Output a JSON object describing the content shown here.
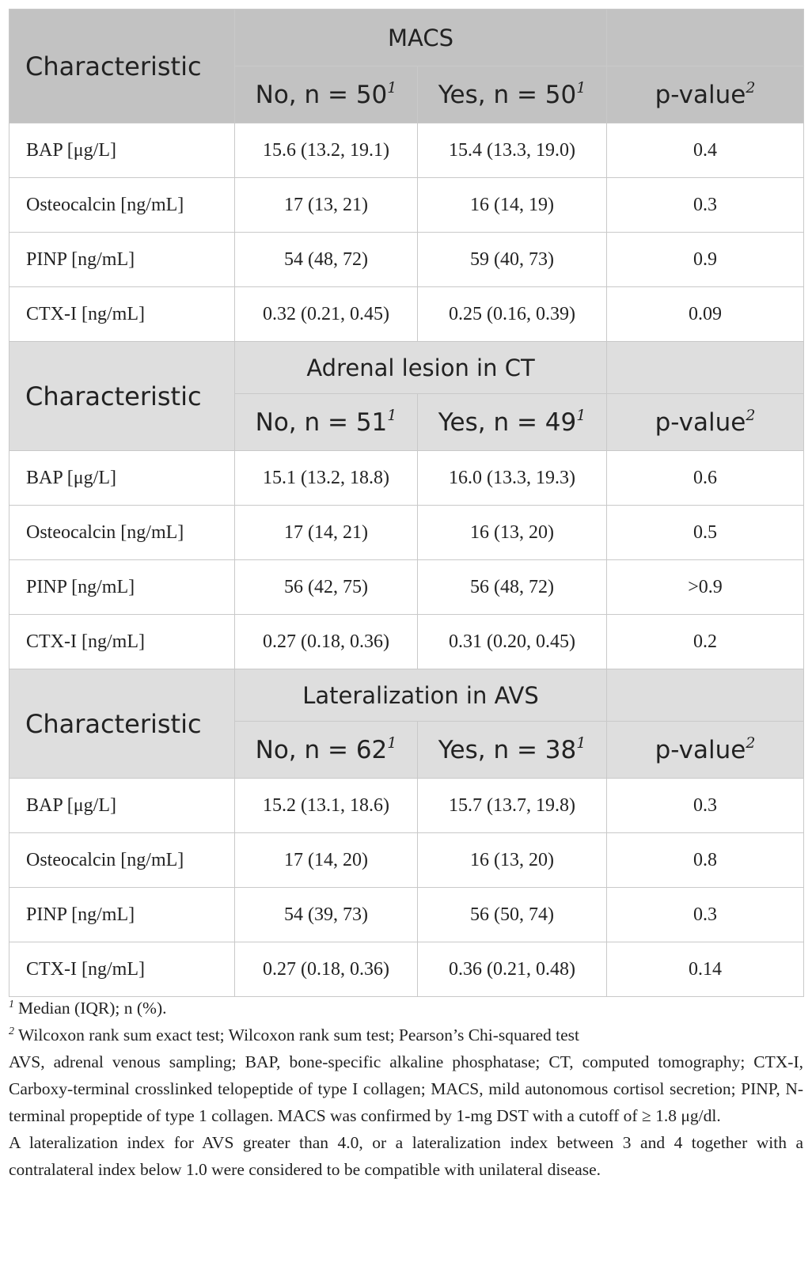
{
  "sections": [
    {
      "characteristic_label": "Characteristic",
      "group_label": "MACS",
      "col_no": "No, n = 50",
      "col_yes": "Yes, n = 50",
      "col_p": "p-value",
      "sup_no": "1",
      "sup_yes": "1",
      "sup_p": "2",
      "rows": [
        {
          "label": "BAP [μg/L]",
          "no": "15.6 (13.2, 19.1)",
          "yes": "15.4 (13.3, 19.0)",
          "p": "0.4"
        },
        {
          "label": "Osteocalcin [ng/mL]",
          "no": "17 (13, 21)",
          "yes": "16 (14, 19)",
          "p": "0.3"
        },
        {
          "label": "PINP [ng/mL]",
          "no": "54 (48, 72)",
          "yes": "59 (40, 73)",
          "p": "0.9"
        },
        {
          "label": "CTX-I [ng/mL]",
          "no": "0.32 (0.21, 0.45)",
          "yes": "0.25 (0.16, 0.39)",
          "p": "0.09"
        }
      ]
    },
    {
      "characteristic_label": "Characteristic",
      "group_label": "Adrenal lesion in CT",
      "col_no": "No, n = 51",
      "col_yes": "Yes, n = 49",
      "col_p": "p-value",
      "sup_no": "1",
      "sup_yes": "1",
      "sup_p": "2",
      "rows": [
        {
          "label": "BAP [μg/L]",
          "no": "15.1 (13.2, 18.8)",
          "yes": "16.0 (13.3, 19.3)",
          "p": "0.6"
        },
        {
          "label": "Osteocalcin [ng/mL]",
          "no": "17 (14, 21)",
          "yes": "16 (13, 20)",
          "p": "0.5"
        },
        {
          "label": "PINP [ng/mL]",
          "no": "56 (42, 75)",
          "yes": "56 (48, 72)",
          "p": ">0.9"
        },
        {
          "label": "CTX-I [ng/mL]",
          "no": "0.27 (0.18, 0.36)",
          "yes": "0.31 (0.20, 0.45)",
          "p": "0.2"
        }
      ]
    },
    {
      "characteristic_label": "Characteristic",
      "group_label": "Lateralization in AVS",
      "col_no": "No, n = 62",
      "col_yes": "Yes, n = 38",
      "col_p": "p-value",
      "sup_no": "1",
      "sup_yes": "1",
      "sup_p": "2",
      "rows": [
        {
          "label": "BAP [μg/L]",
          "no": "15.2 (13.1, 18.6)",
          "yes": "15.7 (13.7, 19.8)",
          "p": "0.3"
        },
        {
          "label": "Osteocalcin [ng/mL]",
          "no": "17 (14, 20)",
          "yes": "16 (13, 20)",
          "p": "0.8"
        },
        {
          "label": "PINP [ng/mL]",
          "no": "54 (39, 73)",
          "yes": "56 (50, 74)",
          "p": "0.3"
        },
        {
          "label": "CTX-I [ng/mL]",
          "no": "0.27 (0.18, 0.36)",
          "yes": "0.36 (0.21, 0.48)",
          "p": "0.14"
        }
      ]
    }
  ],
  "footnotes": {
    "fn1_mark": "1",
    "fn1_text": "Median (IQR); n (%).",
    "fn2_mark": "2",
    "fn2_text": "Wilcoxon rank sum exact test; Wilcoxon rank sum test; Pearson’s Chi-squared test",
    "abbreviations": "AVS, adrenal venous sampling; BAP, bone-specific alkaline phosphatase; CT, computed tomography; CTX-I, Carboxy-terminal crosslinked telopeptide of type I collagen; MACS, mild autonomous cortisol secretion; PINP, N-terminal propeptide of type 1 collagen. MACS was confirmed by 1-mg DST with a cutoff of ≥ 1.8 μg/dl.",
    "lateralization_note": "A lateralization index for AVS greater than 4.0, or a lateralization index between 3 and 4 together with a contralateral index below 1.0 were considered to be compatible with unilateral disease."
  }
}
